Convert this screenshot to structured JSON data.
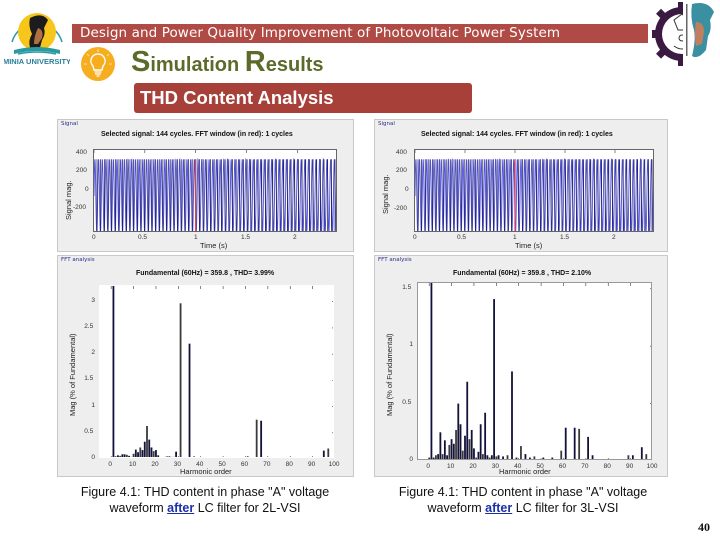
{
  "header": {
    "title": "Design and Power Quality Improvement of Photovoltaic Power System",
    "section_title_first": "S",
    "section_title_rest1": "imulation ",
    "section_title_second": "R",
    "section_title_rest2": "esults",
    "subtitle": "THD Content Analysis",
    "logo_left_text": "MINIA UNIVERSITY",
    "colors": {
      "title_bar": "#b04a45",
      "subtitle_bar": "#a8403a",
      "section_title": "#5c6b2a",
      "bulb": "#f6ae1f"
    }
  },
  "figures": [
    {
      "signal_panel_label": "Signal",
      "fft_panel_label": "FFT analysis",
      "caption_line1": "Figure 4.1: THD content in phase \"A\" voltage",
      "caption_pre": "waveform ",
      "caption_link": "after",
      "caption_post": " LC filter for 2L-VSI"
    },
    {
      "signal_panel_label": "Signal",
      "fft_panel_label": "FFT analysis",
      "caption_line1": "Figure 4.1: THD content in phase \"A\" voltage",
      "caption_pre": "waveform ",
      "caption_link": "after",
      "caption_post": " LC filter for 3L-VSI"
    }
  ],
  "page_number": "40",
  "chart_data": [
    {
      "type": "line",
      "title": "Selected signal: 144 cycles. FFT window (in red): 1 cycles",
      "xlabel": "Time (s)",
      "ylabel": "Signal mag.",
      "xlim": [
        0,
        2.4
      ],
      "ylim": [
        -360,
        450
      ],
      "xticks": [
        "0",
        "0.5",
        "1",
        "1.5",
        "2"
      ],
      "yticks": [
        "400",
        "200",
        "0",
        "-200"
      ],
      "amplitude": 359.8,
      "cycles": 144,
      "fft_window_start": 1.0,
      "fft_window_cycles": 1,
      "series_color": "#2b2bd0",
      "window_color": "#e04040"
    },
    {
      "type": "bar",
      "title": "Fundamental (60Hz) = 359.8 , THD= 3.99%",
      "xlabel": "Harmonic order",
      "ylabel": "Mag (% of Fundamental)",
      "xlim": [
        -5,
        100
      ],
      "ylim": [
        0,
        3.3
      ],
      "xticks": [
        "0",
        "10",
        "20",
        "30",
        "40",
        "50",
        "60",
        "70",
        "80",
        "90",
        "100"
      ],
      "yticks": [
        "3",
        "2.5",
        "2",
        "1.5",
        "1",
        "0.5",
        "0"
      ],
      "fundamental_hz": 60,
      "fundamental_mag": 359.8,
      "thd_percent": 3.99,
      "harmonics": [
        1,
        2,
        3,
        4,
        5,
        6,
        7,
        8,
        9,
        10,
        11,
        12,
        13,
        14,
        15,
        16,
        17,
        18,
        19,
        20,
        21,
        22,
        23,
        24,
        25,
        26,
        27,
        28,
        29,
        30,
        31,
        32,
        33,
        34,
        35,
        36,
        37,
        38,
        39,
        40,
        45,
        50,
        55,
        60,
        61,
        65,
        67,
        69,
        71,
        75,
        80,
        85,
        90,
        95,
        97
      ],
      "values": [
        100,
        0.05,
        0.07,
        0.06,
        0.09,
        0.09,
        0.08,
        0.06,
        0.04,
        0.1,
        0.18,
        0.13,
        0.22,
        0.17,
        0.33,
        0.63,
        0.37,
        0.22,
        0.15,
        0.17,
        0.07,
        0.02,
        0.03,
        0.04,
        0.05,
        0.05,
        0.04,
        0.04,
        0.14,
        0.02,
        2.97,
        0.02,
        0.02,
        0.03,
        2.2,
        0.03,
        0.05,
        0.02,
        0.01,
        0.02,
        0.01,
        0.01,
        0.01,
        0.01,
        0.05,
        0.75,
        0.73,
        0.02,
        0.03,
        0.01,
        0.01,
        0.01,
        0.01,
        0.16,
        0.2
      ]
    },
    {
      "type": "line",
      "title": "Selected signal: 144 cycles. FFT window (in red): 1 cycles",
      "xlabel": "Time (s)",
      "ylabel": "Signal mag.",
      "xlim": [
        0,
        2.4
      ],
      "ylim": [
        -360,
        450
      ],
      "xticks": [
        "0",
        "0.5",
        "1",
        "1.5",
        "2"
      ],
      "yticks": [
        "400",
        "200",
        "0",
        "-200"
      ],
      "amplitude": 359.8,
      "cycles": 144,
      "fft_window_start": 1.0,
      "fft_window_cycles": 1,
      "series_color": "#3030d8",
      "window_color": "#e04060"
    },
    {
      "type": "bar",
      "title": "Fundamental (60Hz) = 359.8 , THD= 2.10%",
      "xlabel": "Harmonic order",
      "ylabel": "Mag (% of Fundamental)",
      "xlim": [
        -5,
        100
      ],
      "ylim": [
        0,
        1.55
      ],
      "xticks": [
        "0",
        "10",
        "20",
        "30",
        "40",
        "50",
        "60",
        "70",
        "80",
        "90",
        "100"
      ],
      "yticks": [
        "1.5",
        "1",
        "0.5",
        "0"
      ],
      "fundamental_hz": 60,
      "fundamental_mag": 359.8,
      "thd_percent": 2.1,
      "harmonics": [
        0,
        1,
        2,
        3,
        4,
        5,
        6,
        7,
        8,
        9,
        10,
        11,
        12,
        13,
        14,
        15,
        16,
        17,
        18,
        19,
        20,
        21,
        22,
        23,
        24,
        25,
        26,
        27,
        28,
        29,
        30,
        31,
        33,
        35,
        37,
        39,
        41,
        43,
        45,
        47,
        51,
        55,
        59,
        61,
        65,
        67,
        71,
        73,
        89,
        91,
        95,
        97
      ],
      "values": [
        0.03,
        100,
        0.03,
        0.05,
        0.06,
        0.25,
        0.06,
        0.18,
        0.05,
        0.14,
        0.19,
        0.15,
        0.27,
        0.5,
        0.32,
        0.09,
        0.22,
        0.69,
        0.19,
        0.27,
        0.11,
        0.03,
        0.08,
        0.32,
        0.06,
        0.42,
        0.05,
        0.03,
        0.05,
        1.41,
        0.04,
        0.05,
        0.04,
        0.05,
        0.78,
        0.03,
        0.13,
        0.06,
        0.03,
        0.04,
        0.03,
        0.03,
        0.09,
        0.29,
        0.29,
        0.28,
        0.21,
        0.05,
        0.05,
        0.05,
        0.12,
        0.06
      ]
    }
  ]
}
